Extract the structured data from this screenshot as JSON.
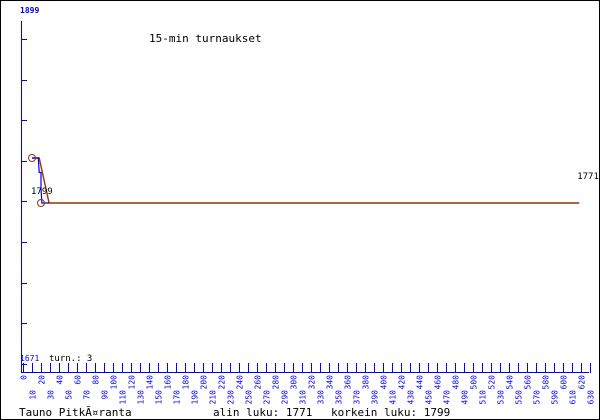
{
  "chart_data": {
    "type": "line",
    "title": "15-min turnaukset",
    "ylim": [
      1671,
      1899
    ],
    "y_top_label": "1899",
    "y_bottom_label": "1671",
    "count_label": "turn.: 3",
    "x_tick_labels": [
      "0",
      "10",
      "20",
      "30",
      "40",
      "50",
      "60",
      "70",
      "80",
      "90",
      "100",
      "110",
      "120",
      "130",
      "140",
      "150",
      "160",
      "170",
      "180",
      "190",
      "200",
      "210",
      "220",
      "230",
      "240",
      "250",
      "260",
      "270",
      "280",
      "290",
      "300",
      "310",
      "320",
      "330",
      "340",
      "350",
      "360",
      "370",
      "380",
      "390",
      "400",
      "410",
      "420",
      "430",
      "440",
      "450",
      "460",
      "470",
      "480",
      "490",
      "500",
      "510",
      "520",
      "530",
      "540",
      "550",
      "560",
      "570",
      "580",
      "590",
      "600",
      "610",
      "620",
      "630"
    ],
    "series": [
      {
        "color": "#993300",
        "x": [
          0,
          8,
          19,
          608
        ],
        "y": [
          1799,
          1799,
          1771,
          1771
        ]
      },
      {
        "color": "#0000ff",
        "x": [
          0,
          7,
          8,
          10,
          10,
          11,
          19
        ],
        "y": [
          1799,
          1799,
          1790,
          1790,
          1780,
          1771,
          1771
        ]
      }
    ],
    "markers": [
      {
        "x": 0,
        "y": 1799
      },
      {
        "x": 10,
        "y": 1771
      }
    ],
    "annotations": [
      {
        "text": "1799",
        "x": 0,
        "y": 1799
      },
      {
        "text": "1771",
        "x": 608,
        "y": 1771
      }
    ],
    "grid": false
  },
  "footer": {
    "name": "Tauno PitkÃ¤ranta",
    "low_label": "alin luku: 1771",
    "high_label": "korkein luku: 1799"
  }
}
